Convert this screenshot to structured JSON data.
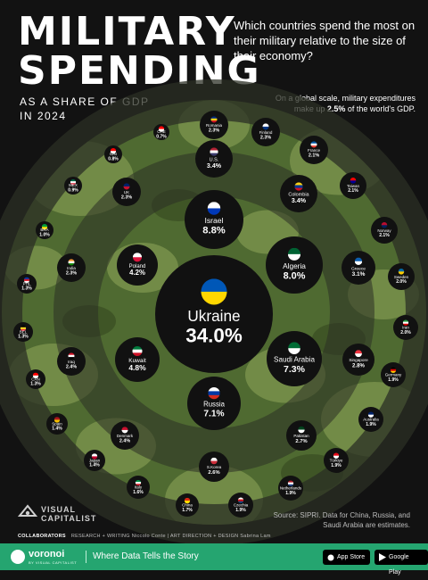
{
  "header": {
    "title_line1": "MILITARY",
    "title_line2": "SPENDING",
    "subtitle_line1": "AS A SHARE OF GDP",
    "subtitle_line2": "IN 2024",
    "question": "Which countries spend the most on their military relative to the size of their economy?",
    "note_prefix": "On a global scale, military expenditures make up ",
    "note_value": "2.5%",
    "note_suffix": " of the world's GDP."
  },
  "chart_data": {
    "type": "bubble",
    "unit": "% of GDP",
    "points": [
      {
        "country": "Ukraine",
        "value": 34.0,
        "label": "34.0%",
        "ring": "center",
        "flag_colors": [
          "#0057b7",
          "#ffd700"
        ]
      },
      {
        "country": "Israel",
        "value": 8.8,
        "label": "8.8%",
        "ring": "inner",
        "flag_colors": [
          "#ffffff",
          "#0038b8"
        ]
      },
      {
        "country": "Algeria",
        "value": 8.0,
        "label": "8.0%",
        "ring": "inner",
        "flag_colors": [
          "#006233",
          "#ffffff"
        ]
      },
      {
        "country": "Saudi Arabia",
        "value": 7.3,
        "label": "7.3%",
        "ring": "inner",
        "flag_colors": [
          "#006c35",
          "#ffffff"
        ]
      },
      {
        "country": "Russia",
        "value": 7.1,
        "label": "7.1%",
        "ring": "inner",
        "flag_colors": [
          "#ffffff",
          "#0039a6",
          "#d52b1e"
        ]
      },
      {
        "country": "Kuwait",
        "value": 4.8,
        "label": "4.8%",
        "ring": "inner",
        "flag_colors": [
          "#007a3d",
          "#ffffff",
          "#ce1126"
        ]
      },
      {
        "country": "Poland",
        "value": 4.2,
        "label": "4.2%",
        "ring": "inner",
        "flag_colors": [
          "#ffffff",
          "#dc143c"
        ]
      },
      {
        "country": "U.S.",
        "value": 3.4,
        "label": "3.4%",
        "ring": "middle",
        "flag_colors": [
          "#b22234",
          "#ffffff",
          "#3c3b6e"
        ]
      },
      {
        "country": "Colombia",
        "value": 3.4,
        "label": "3.4%",
        "ring": "middle",
        "flag_colors": [
          "#fcd116",
          "#003893",
          "#ce1126"
        ]
      },
      {
        "country": "Greece",
        "value": 3.1,
        "label": "3.1%",
        "ring": "middle",
        "flag_colors": [
          "#0d5eaf",
          "#ffffff"
        ]
      },
      {
        "country": "Singapore",
        "value": 2.8,
        "label": "2.8%",
        "ring": "middle",
        "flag_colors": [
          "#ef3340",
          "#ffffff"
        ]
      },
      {
        "country": "Pakistan",
        "value": 2.7,
        "label": "2.7%",
        "ring": "middle",
        "flag_colors": [
          "#01411c",
          "#ffffff"
        ]
      },
      {
        "country": "S.Korea",
        "value": 2.6,
        "label": "2.6%",
        "ring": "middle",
        "flag_colors": [
          "#ffffff",
          "#cd2e3a"
        ]
      },
      {
        "country": "Denmark",
        "value": 2.4,
        "label": "2.4%",
        "ring": "middle",
        "flag_colors": [
          "#c8102e",
          "#ffffff"
        ]
      },
      {
        "country": "Iraq",
        "value": 2.4,
        "label": "2.4%",
        "ring": "middle",
        "flag_colors": [
          "#ce1126",
          "#ffffff",
          "#000000"
        ]
      },
      {
        "country": "India",
        "value": 2.3,
        "label": "2.3%",
        "ring": "middle",
        "flag_colors": [
          "#ff9933",
          "#ffffff",
          "#138808"
        ]
      },
      {
        "country": "UK",
        "value": 2.3,
        "label": "2.3%",
        "ring": "middle",
        "flag_colors": [
          "#012169",
          "#c8102e"
        ]
      },
      {
        "country": "Romania",
        "value": 2.3,
        "label": "2.3%",
        "ring": "outer",
        "flag_colors": [
          "#002b7f",
          "#fcd116",
          "#ce1126"
        ]
      },
      {
        "country": "Finland",
        "value": 2.3,
        "label": "2.3%",
        "ring": "outer",
        "flag_colors": [
          "#ffffff",
          "#003580"
        ]
      },
      {
        "country": "France",
        "value": 2.1,
        "label": "2.1%",
        "ring": "outer",
        "flag_colors": [
          "#0055a4",
          "#ffffff",
          "#ef4135"
        ]
      },
      {
        "country": "Taiwan",
        "value": 2.1,
        "label": "2.1%",
        "ring": "outer",
        "flag_colors": [
          "#fe0000",
          "#000095"
        ]
      },
      {
        "country": "Norway",
        "value": 2.1,
        "label": "2.1%",
        "ring": "outer",
        "flag_colors": [
          "#ba0c2f",
          "#00205b"
        ]
      },
      {
        "country": "Sweden",
        "value": 2.0,
        "label": "2.0%",
        "ring": "outer",
        "flag_colors": [
          "#006aa7",
          "#fecc00"
        ]
      },
      {
        "country": "Iran",
        "value": 2.0,
        "label": "2.0%",
        "ring": "outer",
        "flag_colors": [
          "#239f40",
          "#ffffff",
          "#da0000"
        ]
      },
      {
        "country": "Germany",
        "value": 1.9,
        "label": "1.9%",
        "ring": "outer",
        "flag_colors": [
          "#000000",
          "#dd0000",
          "#ffce00"
        ]
      },
      {
        "country": "Australia",
        "value": 1.9,
        "label": "1.9%",
        "ring": "outer",
        "flag_colors": [
          "#012169",
          "#ffffff"
        ]
      },
      {
        "country": "Türkiye",
        "value": 1.9,
        "label": "1.9%",
        "ring": "outer",
        "flag_colors": [
          "#e30a17",
          "#ffffff"
        ]
      },
      {
        "country": "Netherlands",
        "value": 1.9,
        "label": "1.9%",
        "ring": "outer",
        "flag_colors": [
          "#ae1c28",
          "#ffffff",
          "#21468b"
        ]
      },
      {
        "country": "Czechia",
        "value": 1.9,
        "label": "1.9%",
        "ring": "outer",
        "flag_colors": [
          "#ffffff",
          "#d7141a",
          "#11457e"
        ]
      },
      {
        "country": "China",
        "value": 1.7,
        "label": "1.7%",
        "ring": "outer",
        "flag_colors": [
          "#de2910",
          "#ffde00"
        ]
      },
      {
        "country": "Italy",
        "value": 1.6,
        "label": "1.6%",
        "ring": "outer",
        "flag_colors": [
          "#009246",
          "#ffffff",
          "#ce2b37"
        ]
      },
      {
        "country": "Japan",
        "value": 1.4,
        "label": "1.4%",
        "ring": "outer",
        "flag_colors": [
          "#ffffff",
          "#bc002d"
        ]
      },
      {
        "country": "Spain",
        "value": 1.4,
        "label": "1.4%",
        "ring": "outer",
        "flag_colors": [
          "#aa151b",
          "#f1bf00"
        ]
      },
      {
        "country": "CAN",
        "value": 1.3,
        "label": "1.3%",
        "ring": "edge",
        "flag_colors": [
          "#ff0000",
          "#ffffff"
        ]
      },
      {
        "country": "BEL",
        "value": 1.3,
        "label": "1.3%",
        "ring": "edge",
        "flag_colors": [
          "#000000",
          "#fdda24",
          "#ef3340"
        ]
      },
      {
        "country": "PHL",
        "value": 1.3,
        "label": "1.3%",
        "ring": "edge",
        "flag_colors": [
          "#0038a8",
          "#ce1126",
          "#ffffff"
        ]
      },
      {
        "country": "BRA",
        "value": 1.0,
        "label": "1.0%",
        "ring": "edge",
        "flag_colors": [
          "#009c3b",
          "#ffdf00"
        ]
      },
      {
        "country": "MEX",
        "value": 0.9,
        "label": "0.9%",
        "ring": "edge",
        "flag_colors": [
          "#006847",
          "#ffffff",
          "#ce1126"
        ]
      },
      {
        "country": "IDN",
        "value": 0.8,
        "label": "0.8%",
        "ring": "edge",
        "flag_colors": [
          "#ff0000",
          "#ffffff"
        ]
      },
      {
        "country": "CHE",
        "value": 0.7,
        "label": "0.7%",
        "ring": "edge",
        "flag_colors": [
          "#ff0000",
          "#ffffff"
        ]
      }
    ]
  },
  "footer": {
    "brand_line1": "VISUAL",
    "brand_line2": "CAPITALIST",
    "source": "Source: SIPRI. Data for China, Russia, and Saudi Arabia are estimates.",
    "collaborators_label": "COLLABORATORS",
    "credits": "RESEARCH + WRITING Niccolo Conte | ART DIRECTION + DESIGN Sabrina Lam",
    "voronoi_name": "voronoi",
    "voronoi_sub": "BY VISUAL CAPITALIST",
    "tagline": "Where Data Tells the Story",
    "app_store": "App Store",
    "google_play": "Google Play"
  },
  "colors": {
    "background": "#121212",
    "camo_dark": "#4f6a31",
    "camo_light": "#8fa65a",
    "ring_band": "#2b2f24",
    "bubble": "#111111",
    "footer_green": "#25a570"
  }
}
